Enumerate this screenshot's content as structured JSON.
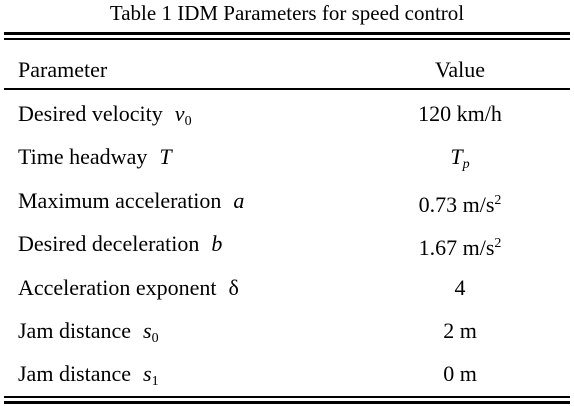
{
  "table": {
    "title": "Table 1 IDM Parameters for speed control",
    "header": [
      "Parameter",
      "Value"
    ],
    "rows": [
      {
        "parameter": "Desired velocity",
        "symbol": "v",
        "symbol_sub": "0",
        "value": "120 km/h"
      },
      {
        "parameter": "Time headway",
        "symbol": "T",
        "value": "T",
        "value_sub": "p",
        "value_italic": true
      },
      {
        "parameter": "Maximum acceleration",
        "symbol": "a",
        "value": "0.73 m/s",
        "value_sup": "2"
      },
      {
        "parameter": "Desired deceleration",
        "symbol": "b",
        "value": "1.67 m/s",
        "value_sup": "2"
      },
      {
        "parameter": "Acceleration exponent",
        "symbol": "δ",
        "symbol_upright": true,
        "value": "4"
      },
      {
        "parameter": "Jam distance",
        "symbol": "s",
        "symbol_sub": "0",
        "value": "2 m"
      },
      {
        "parameter": "Jam distance",
        "symbol": "s",
        "symbol_sub": "1",
        "value": "0 m"
      }
    ]
  }
}
